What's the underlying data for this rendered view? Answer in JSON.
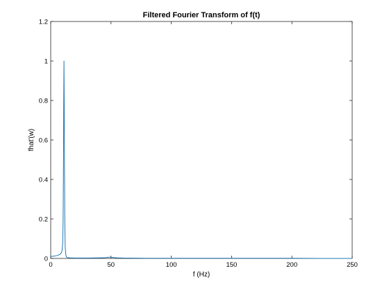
{
  "chart_data": {
    "type": "line",
    "title": "Filtered Fourier Transform of f(t)",
    "xlabel": "f (Hz)",
    "ylabel": "fhat'(w)",
    "xlim": [
      0,
      250
    ],
    "ylim": [
      0,
      1.2
    ],
    "xticks": [
      "0",
      "50",
      "100",
      "150",
      "200",
      "250"
    ],
    "yticks": [
      "0",
      "0.2",
      "0.4",
      "0.6",
      "0.8",
      "1",
      "1.2"
    ],
    "grid": false,
    "series": [
      {
        "color": "#1f77b4",
        "x": [
          0,
          2,
          4,
          6,
          8,
          9,
          9.5,
          10,
          10.3,
          10.6,
          10.8,
          11,
          11.2,
          11.4,
          11.7,
          12,
          12.5,
          13,
          14,
          16,
          20,
          30,
          40,
          45,
          48,
          50,
          52,
          55,
          60,
          80,
          100,
          150,
          200,
          225,
          250
        ],
        "y": [
          0.01,
          0.011,
          0.013,
          0.016,
          0.022,
          0.03,
          0.045,
          0.08,
          0.2,
          0.5,
          0.8,
          1.0,
          0.8,
          0.5,
          0.18,
          0.06,
          0.02,
          0.008,
          0.004,
          0.003,
          0.002,
          0.002,
          0.003,
          0.004,
          0.006,
          0.006,
          0.005,
          0.003,
          0.002,
          0.001,
          0.001,
          0.001,
          0.001,
          0.0,
          0.0
        ]
      }
    ]
  }
}
